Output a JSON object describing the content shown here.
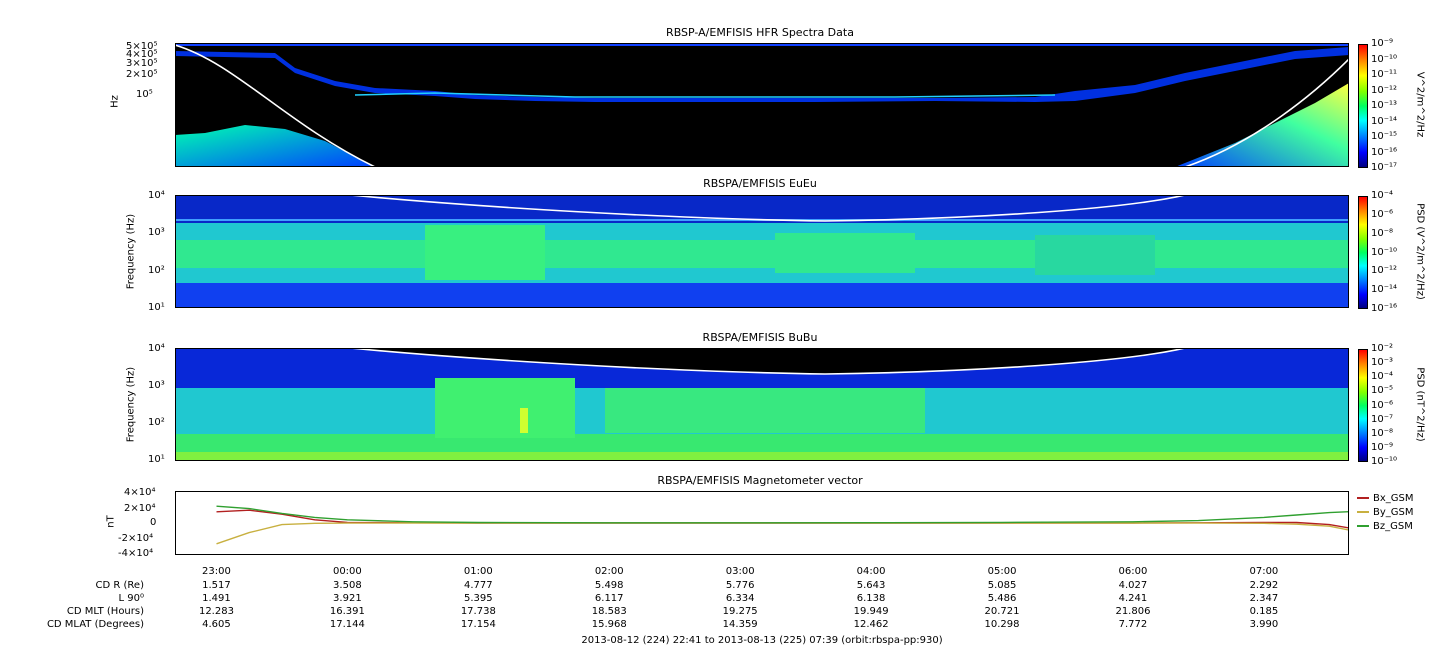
{
  "chart_data": [
    {
      "type": "heatmap",
      "title": "RBSP-A/EMFISIS  HFR Spectra Data",
      "ylabel": "Hz",
      "y_scale": "log",
      "y_tick_labels": [
        "5×10⁵",
        "4×10⁵",
        "3×10⁵",
        "2×10⁵",
        "10⁵"
      ],
      "colorbar_label": "V^2/m^2/Hz",
      "colorbar_ticks": [
        "10⁻⁹",
        "10⁻¹⁰",
        "10⁻¹¹",
        "10⁻¹²",
        "10⁻¹³",
        "10⁻¹⁴",
        "10⁻¹⁵",
        "10⁻¹⁶",
        "10⁻¹⁷"
      ]
    },
    {
      "type": "heatmap",
      "title": "RBSPA/EMFISIS  EuEu",
      "ylabel": "Frequency (Hz)",
      "y_scale": "log",
      "y_tick_labels": [
        "10⁴",
        "10³",
        "10²",
        "10¹"
      ],
      "colorbar_label": "PSD (V^2/m^2/Hz)",
      "colorbar_ticks": [
        "10⁻⁴",
        "10⁻⁶",
        "10⁻⁸",
        "10⁻¹⁰",
        "10⁻¹²",
        "10⁻¹⁴",
        "10⁻¹⁶"
      ]
    },
    {
      "type": "heatmap",
      "title": "RBSPA/EMFISIS  BuBu",
      "ylabel": "Frequency (Hz)",
      "y_scale": "log",
      "y_tick_labels": [
        "10⁴",
        "10³",
        "10²",
        "10¹"
      ],
      "colorbar_label": "PSD (nT^2/Hz)",
      "colorbar_ticks": [
        "10⁻²",
        "10⁻³",
        "10⁻⁴",
        "10⁻⁵",
        "10⁻⁶",
        "10⁻⁷",
        "10⁻⁸",
        "10⁻⁹",
        "10⁻¹⁰"
      ]
    },
    {
      "type": "line",
      "title": "RBSPA/EMFISIS  Magnetometer vector",
      "ylabel": "nT",
      "ylim": [
        -40000,
        40000
      ],
      "y_tick_labels": [
        "4×10⁴",
        "2×10⁴",
        "0",
        "-2×10⁴",
        "-4×10⁴"
      ],
      "x": [
        0,
        0.25,
        0.5,
        0.75,
        1,
        1.5,
        2,
        3,
        4,
        5,
        6,
        7,
        7.5,
        8,
        8.25,
        8.5,
        8.75,
        8.97
      ],
      "series": [
        {
          "name": "Bx_GSM",
          "values": [
            14000,
            16000,
            11000,
            4000,
            800,
            200,
            0,
            0,
            0,
            0,
            0,
            0,
            200,
            800,
            600,
            -2000,
            -9000,
            2000
          ]
        },
        {
          "name": "By_GSM",
          "values": [
            -26000,
            -12000,
            -2000,
            -400,
            -100,
            0,
            0,
            0,
            0,
            0,
            0,
            0,
            -100,
            -400,
            -1500,
            -4000,
            -12000,
            -14000
          ]
        },
        {
          "name": "Bz_GSM",
          "values": [
            21000,
            18000,
            12000,
            7000,
            4000,
            1500,
            600,
            300,
            300,
            400,
            700,
            1500,
            3000,
            7000,
            10000,
            13000,
            15000,
            15500
          ]
        }
      ]
    }
  ],
  "x_tick_labels": [
    "23:00",
    "00:00",
    "01:00",
    "02:00",
    "03:00",
    "04:00",
    "05:00",
    "06:00",
    "07:00"
  ],
  "ephemeris": [
    {
      "label": "CD R (Re)",
      "values": [
        "1.517",
        "3.508",
        "4.777",
        "5.498",
        "5.776",
        "5.643",
        "5.085",
        "4.027",
        "2.292"
      ]
    },
    {
      "label": "L 90⁰",
      "values": [
        "1.491",
        "3.921",
        "5.395",
        "6.117",
        "6.334",
        "6.138",
        "5.486",
        "4.241",
        "2.347"
      ]
    },
    {
      "label": "CD MLT (Hours)",
      "values": [
        "12.283",
        "16.391",
        "17.738",
        "18.583",
        "19.275",
        "19.949",
        "20.721",
        "21.806",
        "0.185"
      ]
    },
    {
      "label": "CD MLAT (Degrees)",
      "values": [
        "4.605",
        "17.144",
        "17.154",
        "15.968",
        "14.359",
        "12.462",
        "10.298",
        "7.772",
        "3.990"
      ]
    }
  ],
  "footer": "2013-08-12 (224) 22:41 to 2013-08-13 (225) 07:39 (orbit:rbspa-pp:930)",
  "colors": {
    "bx": "#b22020",
    "by": "#c8b040",
    "bz": "#30a030",
    "line_white": "#ffffff"
  }
}
